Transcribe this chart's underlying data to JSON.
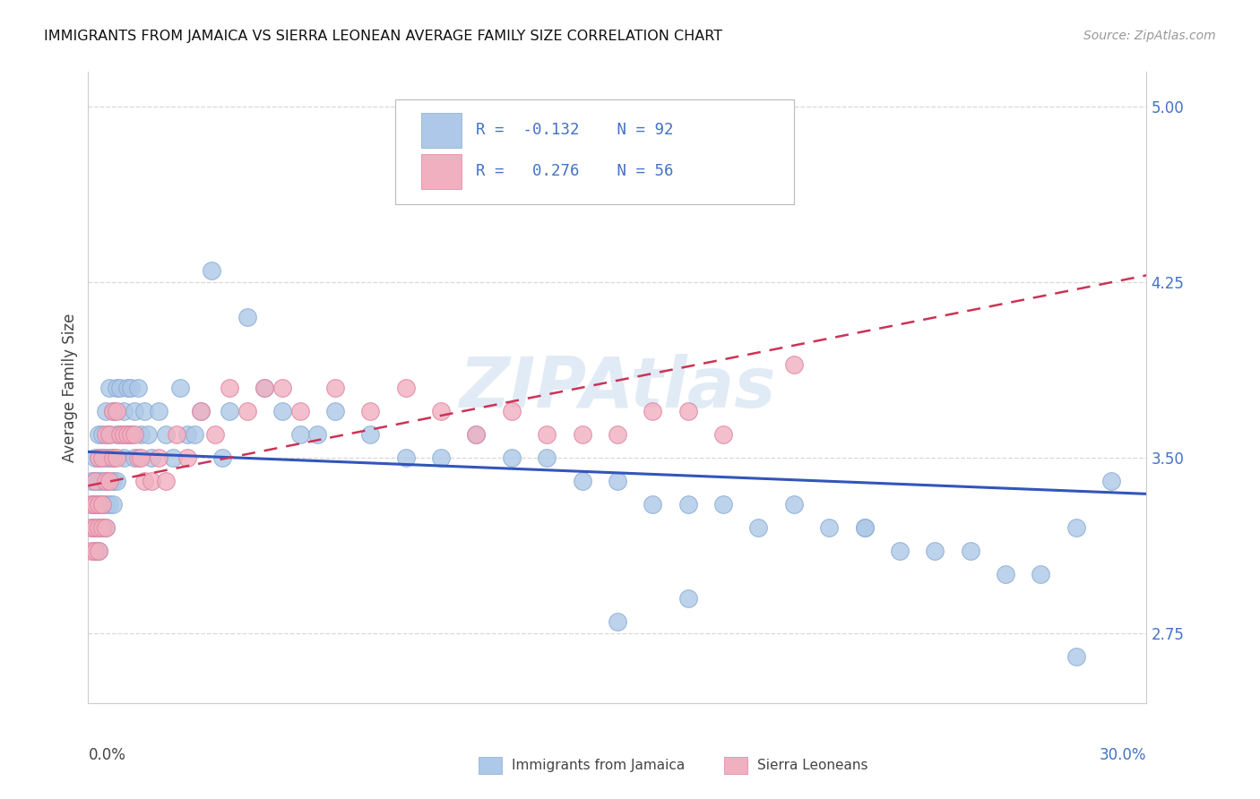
{
  "title": "IMMIGRANTS FROM JAMAICA VS SIERRA LEONEAN AVERAGE FAMILY SIZE CORRELATION CHART",
  "source": "Source: ZipAtlas.com",
  "ylabel": "Average Family Size",
  "xlim": [
    0.0,
    0.3
  ],
  "ylim": [
    2.45,
    5.15
  ],
  "yticks": [
    2.75,
    3.5,
    4.25,
    5.0
  ],
  "background_color": "#ffffff",
  "grid_color": "#d8d8d8",
  "jamaica_color": "#adc8e8",
  "jamaica_edge_color": "#88aad0",
  "sierra_color": "#f0b0c0",
  "sierra_edge_color": "#e080a0",
  "jamaica_R": -0.132,
  "jamaica_N": 92,
  "sierra_R": 0.276,
  "sierra_N": 56,
  "trend_blue": "#3355bb",
  "trend_pink": "#cc3355",
  "watermark": "ZIPAtlas",
  "legend_label_jamaica": "Immigrants from Jamaica",
  "legend_label_sierra": "Sierra Leoneans",
  "jamaica_x": [
    0.001,
    0.001,
    0.001,
    0.002,
    0.002,
    0.002,
    0.002,
    0.002,
    0.003,
    0.003,
    0.003,
    0.003,
    0.003,
    0.003,
    0.004,
    0.004,
    0.004,
    0.004,
    0.004,
    0.005,
    0.005,
    0.005,
    0.005,
    0.005,
    0.006,
    0.006,
    0.006,
    0.006,
    0.007,
    0.007,
    0.007,
    0.007,
    0.008,
    0.008,
    0.008,
    0.009,
    0.009,
    0.01,
    0.01,
    0.011,
    0.011,
    0.012,
    0.012,
    0.013,
    0.013,
    0.014,
    0.015,
    0.016,
    0.017,
    0.018,
    0.02,
    0.022,
    0.024,
    0.026,
    0.028,
    0.03,
    0.032,
    0.035,
    0.038,
    0.04,
    0.045,
    0.05,
    0.055,
    0.06,
    0.065,
    0.07,
    0.08,
    0.09,
    0.1,
    0.11,
    0.12,
    0.13,
    0.14,
    0.15,
    0.16,
    0.17,
    0.18,
    0.19,
    0.2,
    0.21,
    0.22,
    0.23,
    0.24,
    0.25,
    0.26,
    0.27,
    0.28,
    0.29,
    0.15,
    0.17,
    0.22,
    0.28
  ],
  "jamaica_y": [
    3.3,
    3.4,
    3.2,
    3.5,
    3.3,
    3.2,
    3.4,
    3.1,
    3.5,
    3.4,
    3.3,
    3.2,
    3.6,
    3.1,
    3.5,
    3.4,
    3.3,
    3.6,
    3.2,
    3.7,
    3.5,
    3.4,
    3.3,
    3.2,
    3.8,
    3.6,
    3.5,
    3.3,
    3.7,
    3.5,
    3.4,
    3.3,
    3.8,
    3.6,
    3.4,
    3.8,
    3.6,
    3.7,
    3.5,
    3.8,
    3.6,
    3.8,
    3.6,
    3.7,
    3.5,
    3.8,
    3.6,
    3.7,
    3.6,
    3.5,
    3.7,
    3.6,
    3.5,
    3.8,
    3.6,
    3.6,
    3.7,
    4.3,
    3.5,
    3.7,
    4.1,
    3.8,
    3.7,
    3.6,
    3.6,
    3.7,
    3.6,
    3.5,
    3.5,
    3.6,
    3.5,
    3.5,
    3.4,
    3.4,
    3.3,
    3.3,
    3.3,
    3.2,
    3.3,
    3.2,
    3.2,
    3.1,
    3.1,
    3.1,
    3.0,
    3.0,
    3.2,
    3.4,
    2.8,
    2.9,
    3.2,
    2.65
  ],
  "sierra_x": [
    0.001,
    0.001,
    0.001,
    0.002,
    0.002,
    0.002,
    0.002,
    0.003,
    0.003,
    0.003,
    0.003,
    0.004,
    0.004,
    0.004,
    0.005,
    0.005,
    0.005,
    0.006,
    0.006,
    0.007,
    0.007,
    0.008,
    0.008,
    0.009,
    0.01,
    0.011,
    0.012,
    0.013,
    0.014,
    0.015,
    0.016,
    0.018,
    0.02,
    0.022,
    0.025,
    0.028,
    0.032,
    0.036,
    0.04,
    0.045,
    0.05,
    0.055,
    0.06,
    0.07,
    0.08,
    0.09,
    0.1,
    0.11,
    0.12,
    0.13,
    0.14,
    0.15,
    0.16,
    0.17,
    0.18,
    0.2
  ],
  "sierra_y": [
    3.3,
    3.2,
    3.1,
    3.4,
    3.3,
    3.2,
    3.1,
    3.5,
    3.3,
    3.2,
    3.1,
    3.5,
    3.3,
    3.2,
    3.6,
    3.4,
    3.2,
    3.6,
    3.4,
    3.7,
    3.5,
    3.7,
    3.5,
    3.6,
    3.6,
    3.6,
    3.6,
    3.6,
    3.5,
    3.5,
    3.4,
    3.4,
    3.5,
    3.4,
    3.6,
    3.5,
    3.7,
    3.6,
    3.8,
    3.7,
    3.8,
    3.8,
    3.7,
    3.8,
    3.7,
    3.8,
    3.7,
    3.6,
    3.7,
    3.6,
    3.6,
    3.6,
    3.7,
    3.7,
    3.6,
    3.9
  ],
  "jam_trend_x": [
    0.0,
    0.3
  ],
  "jam_trend_y": [
    3.525,
    3.345
  ],
  "sl_trend_x": [
    0.0,
    0.3
  ],
  "sl_trend_y": [
    3.38,
    4.28
  ]
}
